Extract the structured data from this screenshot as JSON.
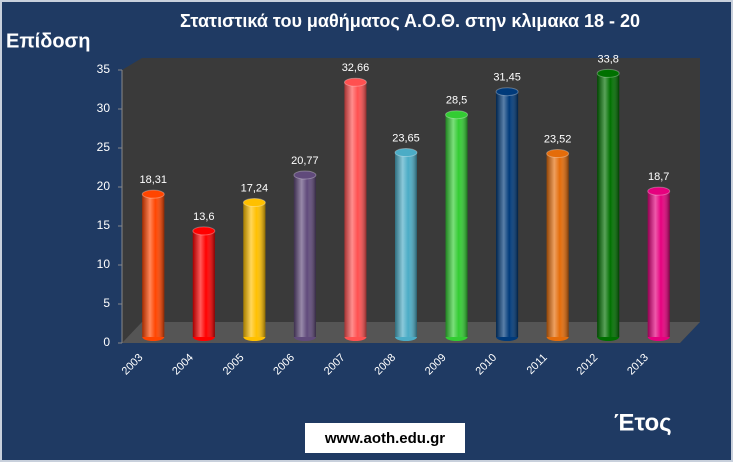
{
  "chart_data": {
    "type": "bar",
    "title": "Στατιστικά του μαθήματος Α.Ο.Θ.  στην κλιμακα 18 - 20",
    "y_label": "Επίδοση",
    "x_label": "Έτος",
    "footer": "www.aoth.edu.gr",
    "categories": [
      "2003",
      "2004",
      "2005",
      "2006",
      "2007",
      "2008",
      "2009",
      "2010",
      "2011",
      "2012",
      "2013"
    ],
    "values": [
      18.31,
      13.6,
      17.24,
      20.77,
      32.66,
      23.65,
      28.5,
      31.45,
      23.52,
      33.8,
      18.7
    ],
    "value_labels": [
      "18,31",
      "13,6",
      "17,24",
      "20,77",
      "32,66",
      "23,65",
      "28,5",
      "31,45",
      "23,52",
      "33,8",
      "18,7"
    ],
    "colors": [
      "#ff4500",
      "#ff0000",
      "#ffc000",
      "#604a7b",
      "#ff5050",
      "#4bacc6",
      "#33cc33",
      "#003a7a",
      "#e46c0a",
      "#007000",
      "#e6007e"
    ],
    "ylim": [
      0,
      35
    ],
    "yticks": [
      0,
      5,
      10,
      15,
      20,
      25,
      30,
      35
    ]
  }
}
